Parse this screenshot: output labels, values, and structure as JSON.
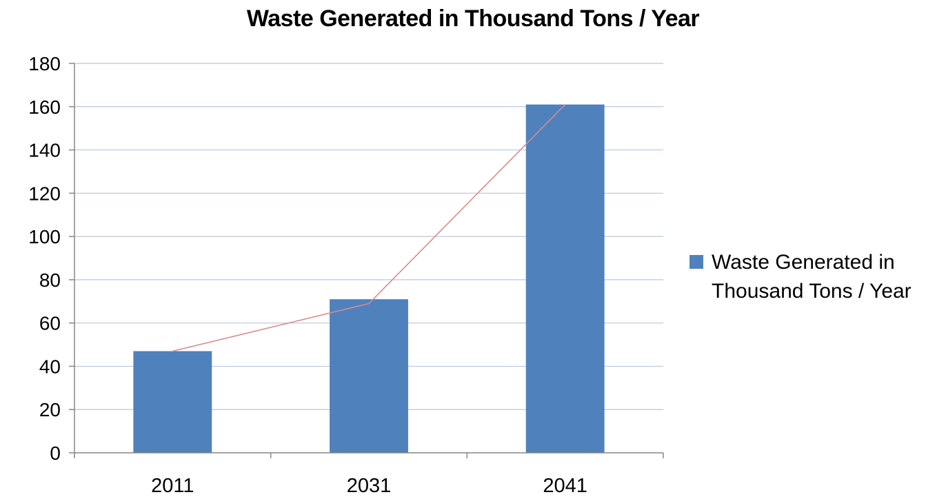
{
  "chart_data": {
    "type": "bar",
    "title": "Waste Generated in Thousand Tons / Year",
    "xlabel": "",
    "ylabel": "",
    "categories": [
      "2011",
      "2031",
      "2041"
    ],
    "series": [
      {
        "name": "Waste Generated in Thousand Tons / Year",
        "values": [
          47,
          71,
          161
        ]
      }
    ],
    "trend_line": {
      "values": [
        47,
        69,
        161
      ],
      "color": "#d98b8b"
    },
    "ylim": [
      0,
      180
    ],
    "yticks": [
      0,
      20,
      40,
      60,
      80,
      100,
      120,
      140,
      160,
      180
    ],
    "grid": true,
    "legend_position": "right",
    "colors": {
      "bar": "#4f81bd",
      "grid": "#b8c7e0",
      "axis": "#868686",
      "text": "#000000"
    }
  }
}
